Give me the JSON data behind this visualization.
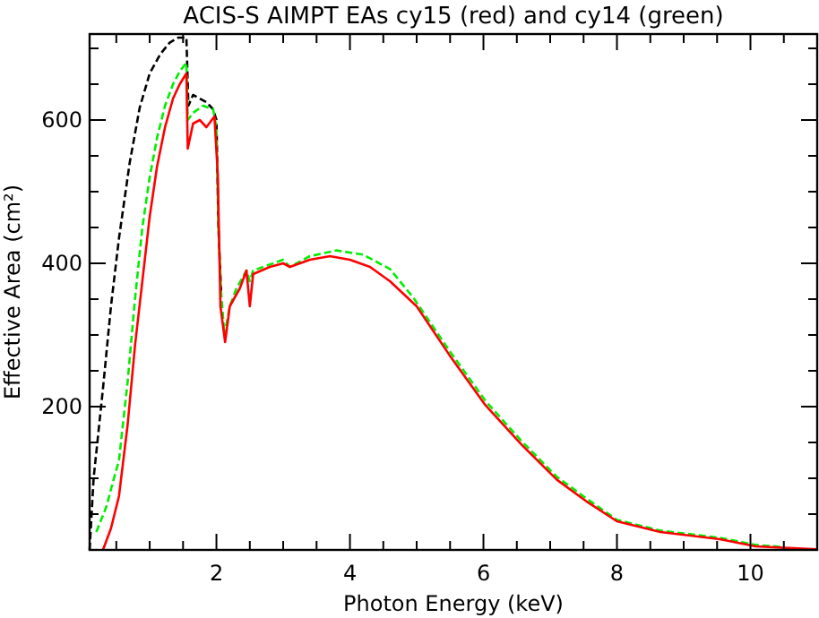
{
  "chart_data": {
    "type": "line",
    "title": "ACIS-S AIMPT EAs cy15 (red) and cy14 (green)",
    "xlabel": "Photon Energy (keV)",
    "ylabel": "Effective Area (cm²)",
    "xlim": [
      0.1,
      11
    ],
    "ylim": [
      0,
      720
    ],
    "xticks": [
      {
        "value": 0.5,
        "label": null
      },
      {
        "value": 1,
        "label": null
      },
      {
        "value": 1.5,
        "label": null
      },
      2,
      {
        "value": 2.5,
        "label": null
      },
      {
        "value": 3,
        "label": null
      },
      {
        "value": 3.5,
        "label": null
      },
      4,
      {
        "value": 4.5,
        "label": null
      },
      {
        "value": 5,
        "label": null
      },
      {
        "value": 5.5,
        "label": null
      },
      6,
      {
        "value": 6.5,
        "label": null
      },
      {
        "value": 7,
        "label": null
      },
      {
        "value": 7.5,
        "label": null
      },
      8,
      {
        "value": 8.5,
        "label": null
      },
      {
        "value": 9,
        "label": null
      },
      {
        "value": 9.5,
        "label": null
      },
      10,
      {
        "value": 10.5,
        "label": null
      }
    ],
    "yticks": [
      {
        "value": 50,
        "label": null
      },
      {
        "value": 100,
        "label": null
      },
      {
        "value": 150,
        "label": null
      },
      200,
      {
        "value": 250,
        "label": null
      },
      {
        "value": 300,
        "label": null
      },
      {
        "value": 350,
        "label": null
      },
      400,
      {
        "value": 450,
        "label": null
      },
      {
        "value": 500,
        "label": null
      },
      {
        "value": 550,
        "label": null
      },
      600,
      {
        "value": 650,
        "label": null
      },
      {
        "value": 700,
        "label": null
      }
    ],
    "grid": false,
    "marker": "none",
    "series": [
      {
        "color": "#000000",
        "line_style": "dashed",
        "x": [
          0.1,
          0.16,
          0.3,
          0.42,
          0.54,
          0.7,
          0.85,
          1.0,
          1.16,
          1.3,
          1.43,
          1.55,
          1.58,
          1.65,
          1.75,
          1.85,
          1.95,
          2.0,
          2.03,
          2.07
        ],
        "values": [
          0,
          100,
          225,
          340,
          435,
          540,
          617,
          665,
          692,
          708,
          715,
          715,
          620,
          635,
          630,
          625,
          615,
          600,
          450,
          360
        ]
      },
      {
        "color": "#00ee00",
        "line_style": "dashed",
        "x": [
          0.2,
          0.35,
          0.45,
          0.54,
          0.67,
          0.78,
          0.89,
          1.0,
          1.11,
          1.23,
          1.35,
          1.45,
          1.55,
          1.57,
          1.65,
          1.8,
          1.95,
          2.0,
          2.03,
          2.07,
          2.12,
          2.2,
          2.3,
          2.45,
          2.5,
          2.55,
          2.7,
          3.0,
          3.1,
          3.4,
          3.8,
          4.2,
          4.6,
          4.95,
          5.49,
          6.03,
          6.57,
          7.1,
          7.57,
          8.0,
          8.65,
          9.54,
          10.08,
          10.5
        ],
        "values": [
          25,
          60,
          95,
          125,
          235,
          350,
          450,
          520,
          575,
          620,
          650,
          668,
          680,
          600,
          610,
          620,
          615,
          590,
          450,
          360,
          300,
          340,
          365,
          390,
          375,
          390,
          395,
          405,
          395,
          410,
          418,
          412,
          392,
          352,
          278,
          208,
          152,
          102,
          70,
          42,
          27,
          17,
          7,
          4
        ]
      },
      {
        "color": "#ff0000",
        "line_style": "solid",
        "x": [
          0.3,
          0.42,
          0.54,
          0.67,
          0.78,
          0.89,
          1.0,
          1.11,
          1.23,
          1.35,
          1.45,
          1.55,
          1.57,
          1.65,
          1.75,
          1.85,
          1.97,
          2.02,
          2.06,
          2.13,
          2.2,
          2.35,
          2.45,
          2.5,
          2.55,
          2.8,
          3.0,
          3.1,
          3.4,
          3.7,
          4.0,
          4.3,
          4.6,
          5.0,
          5.49,
          6.03,
          6.57,
          7.1,
          7.57,
          8.0,
          8.65,
          9.54,
          10.08,
          10.5,
          11.0
        ],
        "values": [
          0,
          30,
          75,
          175,
          285,
          375,
          465,
          535,
          590,
          630,
          650,
          665,
          560,
          595,
          600,
          590,
          605,
          525,
          340,
          290,
          340,
          365,
          390,
          340,
          385,
          395,
          400,
          395,
          405,
          410,
          405,
          395,
          375,
          340,
          272,
          202,
          147,
          98,
          66,
          40,
          25,
          15,
          5,
          3,
          1
        ]
      }
    ]
  }
}
